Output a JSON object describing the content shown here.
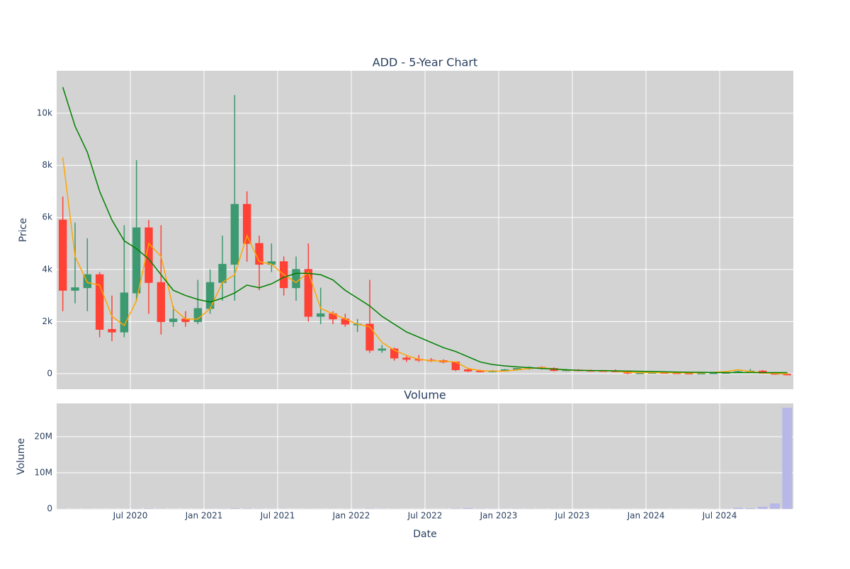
{
  "chart_data": [
    {
      "type": "candlestick",
      "title": "ADD - 5-Year Chart",
      "ylabel": "Price",
      "x": [
        "2020-01",
        "2020-02",
        "2020-03",
        "2020-04",
        "2020-05",
        "2020-06",
        "2020-07",
        "2020-08",
        "2020-09",
        "2020-10",
        "2020-11",
        "2020-12",
        "2021-01",
        "2021-02",
        "2021-03",
        "2021-04",
        "2021-05",
        "2021-06",
        "2021-07",
        "2021-08",
        "2021-09",
        "2021-10",
        "2021-11",
        "2021-12",
        "2022-01",
        "2022-02",
        "2022-03",
        "2022-04",
        "2022-05",
        "2022-06",
        "2022-07",
        "2022-08",
        "2022-09",
        "2022-10",
        "2022-11",
        "2022-12",
        "2023-01",
        "2023-02",
        "2023-03",
        "2023-04",
        "2023-05",
        "2023-06",
        "2023-07",
        "2023-08",
        "2023-09",
        "2023-10",
        "2023-11",
        "2023-12",
        "2024-01",
        "2024-02",
        "2024-03",
        "2024-04",
        "2024-05",
        "2024-06",
        "2024-07",
        "2024-08",
        "2024-09",
        "2024-10",
        "2024-11",
        "2024-12"
      ],
      "open": [
        5900,
        3200,
        3300,
        3800,
        1700,
        1600,
        3100,
        5600,
        3500,
        2000,
        2100,
        2000,
        2500,
        3500,
        4200,
        6500,
        5000,
        4200,
        4300,
        3300,
        4000,
        2200,
        2300,
        2100,
        1900,
        1900,
        900,
        950,
        600,
        550,
        520,
        500,
        450,
        150,
        100,
        90,
        100,
        150,
        200,
        240,
        200,
        120,
        140,
        120,
        110,
        100,
        90,
        20,
        30,
        40,
        30,
        20,
        10,
        20,
        30,
        40,
        80,
        100,
        20,
        -20
      ],
      "high": [
        6800,
        5800,
        5200,
        3900,
        3000,
        5700,
        8200,
        5900,
        5700,
        2600,
        2400,
        3600,
        4000,
        5300,
        10700,
        7000,
        5300,
        5000,
        4500,
        4500,
        5000,
        3300,
        2400,
        2300,
        2100,
        3600,
        1100,
        1000,
        700,
        720,
        600,
        550,
        460,
        200,
        150,
        140,
        180,
        220,
        280,
        280,
        240,
        180,
        170,
        160,
        130,
        160,
        120,
        60,
        70,
        70,
        60,
        50,
        40,
        60,
        80,
        120,
        180,
        140,
        40,
        20
      ],
      "low": [
        2400,
        2700,
        2400,
        1400,
        1250,
        1400,
        2800,
        2300,
        1500,
        1800,
        1800,
        1900,
        2300,
        2800,
        2800,
        4300,
        3200,
        3900,
        3000,
        2800,
        2000,
        1900,
        1900,
        1800,
        1600,
        800,
        800,
        500,
        450,
        450,
        450,
        400,
        100,
        60,
        50,
        60,
        80,
        120,
        150,
        160,
        80,
        90,
        100,
        90,
        80,
        60,
        -20,
        -10,
        0,
        10,
        0,
        -10,
        -10,
        0,
        10,
        20,
        40,
        0,
        -40,
        -60
      ],
      "close": [
        3200,
        3300,
        3800,
        1700,
        1600,
        3100,
        5600,
        3500,
        2000,
        2100,
        2000,
        2500,
        3500,
        4200,
        6500,
        5000,
        4200,
        4300,
        3300,
        4000,
        2200,
        2300,
        2100,
        1900,
        1900,
        900,
        950,
        600,
        550,
        520,
        500,
        450,
        150,
        100,
        90,
        100,
        150,
        200,
        240,
        200,
        120,
        140,
        120,
        110,
        100,
        90,
        20,
        30,
        40,
        30,
        20,
        10,
        20,
        30,
        40,
        80,
        100,
        20,
        -20,
        -30
      ],
      "increasing_color": "#3d9970",
      "decreasing_color": "#ff4136",
      "lines": [
        {
          "color": "orange",
          "values": [
            8300,
            4500,
            3500,
            3400,
            2200,
            1850,
            2800,
            5000,
            4500,
            2500,
            2100,
            2100,
            2500,
            3500,
            3800,
            5300,
            4300,
            4200,
            3800,
            3500,
            3900,
            2500,
            2300,
            2100,
            1900,
            1800,
            1200,
            900,
            700,
            550,
            500,
            480,
            450,
            200,
            120,
            100,
            100,
            150,
            200,
            230,
            180,
            140,
            130,
            120,
            110,
            100,
            50,
            40,
            40,
            40,
            30,
            30,
            30,
            50,
            80,
            150,
            80,
            30,
            10,
            -10
          ]
        },
        {
          "color": "green",
          "values": [
            11000,
            9500,
            8500,
            7000,
            5900,
            5100,
            4800,
            4400,
            3800,
            3200,
            3000,
            2850,
            2750,
            2900,
            3100,
            3400,
            3300,
            3450,
            3700,
            3850,
            3850,
            3800,
            3600,
            3200,
            2900,
            2600,
            2200,
            1900,
            1600,
            1400,
            1200,
            1000,
            850,
            650,
            450,
            350,
            300,
            260,
            230,
            200,
            180,
            150,
            130,
            120,
            120,
            110,
            100,
            90,
            80,
            70,
            60,
            55,
            50,
            45,
            40,
            40,
            40,
            40,
            40,
            40
          ]
        }
      ],
      "xlim": [
        "2020-01",
        "2025-01"
      ],
      "ylim": [
        -598,
        11630
      ],
      "yticks": [
        0,
        {
          "value": 2000,
          "label": "2k"
        },
        {
          "value": 4000,
          "label": "4k"
        },
        {
          "value": 6000,
          "label": "6k"
        },
        {
          "value": 8000,
          "label": "8k"
        },
        {
          "value": 10000,
          "label": "10k"
        }
      ],
      "grid": true
    },
    {
      "type": "bar",
      "title": "Volume",
      "xlabel": "Date",
      "ylabel": "Volume",
      "x": [
        "2020-01",
        "2020-02",
        "2020-03",
        "2020-04",
        "2020-05",
        "2020-06",
        "2020-07",
        "2020-08",
        "2020-09",
        "2020-10",
        "2020-11",
        "2020-12",
        "2021-01",
        "2021-02",
        "2021-03",
        "2021-04",
        "2021-05",
        "2021-06",
        "2021-07",
        "2021-08",
        "2021-09",
        "2021-10",
        "2021-11",
        "2021-12",
        "2022-01",
        "2022-02",
        "2022-03",
        "2022-04",
        "2022-05",
        "2022-06",
        "2022-07",
        "2022-08",
        "2022-09",
        "2022-10",
        "2022-11",
        "2022-12",
        "2023-01",
        "2023-02",
        "2023-03",
        "2023-04",
        "2023-05",
        "2023-06",
        "2023-07",
        "2023-08",
        "2023-09",
        "2023-10",
        "2023-11",
        "2023-12",
        "2024-01",
        "2024-02",
        "2024-03",
        "2024-04",
        "2024-05",
        "2024-06",
        "2024-07",
        "2024-08",
        "2024-09",
        "2024-10",
        "2024-11",
        "2024-12"
      ],
      "values": [
        50000,
        40000,
        40000,
        30000,
        30000,
        30000,
        60000,
        80000,
        50000,
        30000,
        30000,
        30000,
        40000,
        50000,
        120000,
        80000,
        50000,
        40000,
        40000,
        30000,
        40000,
        30000,
        30000,
        30000,
        30000,
        60000,
        40000,
        40000,
        30000,
        30000,
        30000,
        30000,
        80000,
        200000,
        60000,
        40000,
        40000,
        50000,
        50000,
        40000,
        40000,
        40000,
        30000,
        30000,
        30000,
        40000,
        40000,
        30000,
        30000,
        30000,
        30000,
        30000,
        30000,
        40000,
        60000,
        300000,
        200000,
        600000,
        1500000,
        28000000
      ],
      "color": "#b7b7e8",
      "xlim": [
        "2020-01",
        "2025-01"
      ],
      "ylim": [
        -200000,
        29200000
      ],
      "yticks": [
        0,
        {
          "value": 10000000,
          "label": "10M"
        },
        {
          "value": 20000000,
          "label": "20M"
        }
      ],
      "xticks": [
        {
          "value": "2020-07",
          "label": "Jul 2020"
        },
        {
          "value": "2021-01",
          "label": "Jan 2021"
        },
        {
          "value": "2021-07",
          "label": "Jul 2021"
        },
        {
          "value": "2022-01",
          "label": "Jan 2022"
        },
        {
          "value": "2022-07",
          "label": "Jul 2022"
        },
        {
          "value": "2023-01",
          "label": "Jan 2023"
        },
        {
          "value": "2023-07",
          "label": "Jul 2023"
        },
        {
          "value": "2024-01",
          "label": "Jan 2024"
        },
        {
          "value": "2024-07",
          "label": "Jul 2024"
        }
      ],
      "grid": true
    }
  ]
}
